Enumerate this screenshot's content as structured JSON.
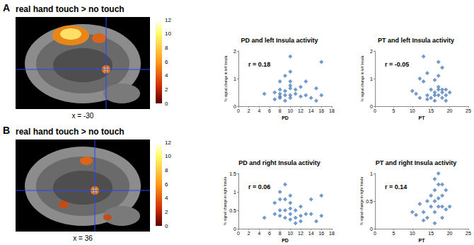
{
  "chart_data": [
    {
      "type": "brain_slice",
      "panel": "A",
      "title": "real hand touch > no touch",
      "caption": "x = -30",
      "colorbar": {
        "range": [
          0,
          12
        ],
        "ticks": [
          0,
          2,
          4,
          6,
          8,
          10,
          12
        ]
      }
    },
    {
      "type": "scatter",
      "panel": "A",
      "title": "PD and left Insula activity",
      "x_label": "PD",
      "y_label": "% signal change in left Insula",
      "annotation": "r = 0.18",
      "x": [
        5,
        7,
        7,
        8,
        8,
        8,
        8,
        8,
        9,
        9,
        9,
        9,
        10,
        10,
        10,
        10,
        10,
        10,
        10,
        11,
        11,
        12,
        12,
        13,
        13,
        14,
        15,
        15,
        16,
        16
      ],
      "values": [
        0.45,
        0.5,
        0.25,
        0.3,
        0.35,
        0.45,
        0.6,
        0.9,
        0.4,
        0.55,
        0.2,
        1.1,
        0.75,
        0.65,
        0.9,
        1.25,
        1.8,
        0.4,
        0.3,
        0.45,
        0.6,
        0.35,
        0.7,
        0.4,
        0.9,
        0.3,
        0.2,
        0.65,
        1.6,
        0.4
      ],
      "xlim": [
        0,
        18
      ],
      "xticks": [
        0,
        2,
        4,
        6,
        8,
        10,
        12,
        14,
        16,
        18
      ],
      "ylim": [
        0,
        2
      ],
      "yticks": [
        0,
        1,
        2
      ],
      "color": "#4f81bd",
      "marker": "diamond",
      "grid": false
    },
    {
      "type": "scatter",
      "panel": "A",
      "title": "PT and left Insula activity",
      "x_label": "PT",
      "y_label": "% signal change in left Insula",
      "annotation": "r = -0.05",
      "x": [
        10,
        11,
        12,
        12,
        13,
        13,
        14,
        14,
        15,
        15,
        16,
        16,
        16,
        17,
        17,
        17,
        17,
        18,
        18,
        18,
        19,
        19,
        19,
        20,
        17,
        16,
        18,
        14
      ],
      "values": [
        0.55,
        0.45,
        1.0,
        0.3,
        1.8,
        0.9,
        0.4,
        1.2,
        0.6,
        0.3,
        0.4,
        0.5,
        0.2,
        1.6,
        0.6,
        0.4,
        0.7,
        1.4,
        0.5,
        0.3,
        0.4,
        0.6,
        0.2,
        0.5,
        1.1,
        0.95,
        0.6,
        0.25
      ],
      "xlim": [
        0,
        25
      ],
      "xticks": [
        0,
        5,
        10,
        15,
        20,
        25
      ],
      "ylim": [
        0,
        2
      ],
      "yticks": [
        0,
        1,
        2
      ],
      "color": "#4f81bd",
      "marker": "diamond",
      "grid": false
    },
    {
      "type": "brain_slice",
      "panel": "B",
      "title": "real hand touch > no touch",
      "caption": "x = 36",
      "colorbar": {
        "range": [
          0,
          12
        ],
        "ticks": [
          0,
          2,
          4,
          6,
          8,
          10,
          12
        ]
      }
    },
    {
      "type": "scatter",
      "panel": "B",
      "title": "PD and right Insula activity",
      "x_label": "PD",
      "y_label": "% signal change in right Insula",
      "annotation": "r = 0.06",
      "x": [
        5,
        7,
        7,
        8,
        8,
        8,
        8,
        9,
        9,
        9,
        9,
        10,
        10,
        10,
        10,
        11,
        11,
        11,
        12,
        12,
        13,
        14,
        14,
        15,
        16,
        16,
        10,
        12
      ],
      "values": [
        0.3,
        0.4,
        0.7,
        0.35,
        0.5,
        0.8,
        1.0,
        0.5,
        0.3,
        0.8,
        1.2,
        0.7,
        0.4,
        0.25,
        0.55,
        0.5,
        0.15,
        0.3,
        0.2,
        0.35,
        0.4,
        0.4,
        0.8,
        0.2,
        0.9,
        0.35,
        0.9,
        0.6
      ],
      "xlim": [
        0,
        18
      ],
      "xticks": [
        0,
        2,
        4,
        6,
        8,
        10,
        12,
        14,
        16,
        18
      ],
      "ylim": [
        0,
        1.5
      ],
      "yticks": [
        0,
        0.5,
        1,
        1.5
      ],
      "color": "#4f81bd",
      "marker": "diamond",
      "grid": false
    },
    {
      "type": "scatter",
      "panel": "B",
      "title": "PT and right Insula activity",
      "x_label": "PT",
      "y_label": "% signal change in right Insula",
      "annotation": "r = 0.14",
      "x": [
        10,
        11,
        12,
        13,
        14,
        14,
        15,
        15,
        16,
        16,
        16,
        16,
        17,
        17,
        17,
        17,
        18,
        18,
        18,
        19,
        19,
        20,
        13,
        16,
        18
      ],
      "values": [
        0.3,
        0.25,
        0.45,
        0.3,
        0.5,
        0.2,
        0.6,
        0.4,
        0.7,
        0.9,
        0.3,
        0.5,
        1.0,
        0.4,
        0.55,
        0.8,
        0.4,
        0.6,
        0.2,
        0.35,
        0.7,
        0.4,
        0.15,
        0.1,
        0.8
      ],
      "xlim": [
        0,
        25
      ],
      "xticks": [
        0,
        5,
        10,
        15,
        20,
        25
      ],
      "ylim": [
        0,
        1
      ],
      "yticks": [
        0,
        0.5,
        1
      ],
      "color": "#4f81bd",
      "marker": "diamond",
      "grid": false
    }
  ]
}
